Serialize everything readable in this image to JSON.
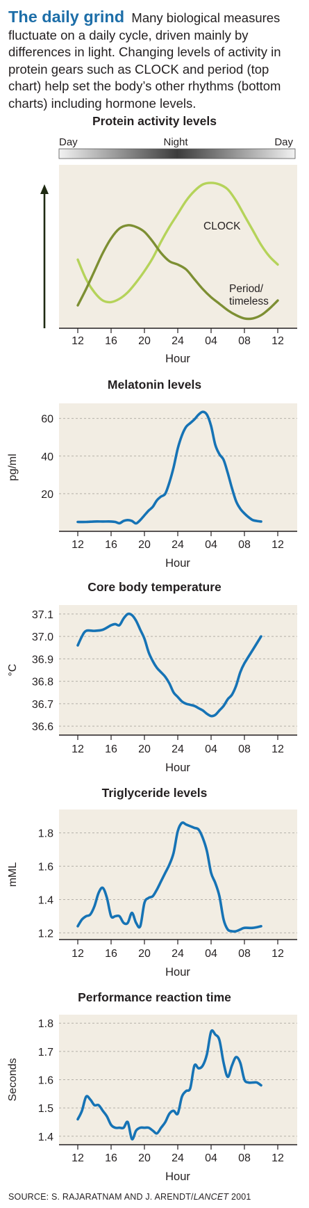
{
  "header": {
    "title": "The daily grind",
    "intro": "Many biological measures fluctuate on a daily cycle, driven mainly by differences in light. Changing levels of activity in protein gears such as CLOCK and period (top chart) help set the body’s other rhythms (bottom charts) including hormone levels."
  },
  "colors": {
    "plot_bg": "#f2ede3",
    "line": "#1673b5",
    "clock": "#b5d35a",
    "period": "#7d8f33",
    "grid": "#b4b0a8"
  },
  "chart_data": [
    {
      "type": "line",
      "title": "Protein activity levels",
      "daynight": [
        "Day",
        "Night",
        "Day"
      ],
      "xlabel": "Hour",
      "ylabel": "",
      "x_ticks": [
        "12",
        "16",
        "20",
        "24",
        "04",
        "08",
        "12"
      ],
      "x_range": [
        0,
        24
      ],
      "ylim": [
        0,
        1
      ],
      "y_axis_arrow": true,
      "grid": false,
      "series": [
        {
          "name": "CLOCK",
          "x": [
            0,
            1,
            2,
            3,
            4,
            5,
            6,
            7,
            8,
            9,
            10,
            11,
            12,
            13,
            14,
            15,
            16,
            17,
            18,
            19,
            20,
            21,
            22,
            23,
            24
          ],
          "y": [
            0.42,
            0.3,
            0.22,
            0.17,
            0.16,
            0.18,
            0.22,
            0.28,
            0.35,
            0.43,
            0.53,
            0.62,
            0.7,
            0.78,
            0.84,
            0.88,
            0.89,
            0.88,
            0.85,
            0.78,
            0.69,
            0.6,
            0.51,
            0.44,
            0.39
          ]
        },
        {
          "name": "Period/ timeless",
          "x": [
            0,
            1,
            2,
            3,
            4,
            5,
            6,
            7,
            8,
            9,
            10,
            11,
            12,
            13,
            14,
            15,
            16,
            17,
            18,
            19,
            20,
            21,
            22,
            23,
            24
          ],
          "y": [
            0.14,
            0.24,
            0.35,
            0.46,
            0.55,
            0.61,
            0.63,
            0.62,
            0.59,
            0.53,
            0.46,
            0.41,
            0.39,
            0.36,
            0.3,
            0.24,
            0.19,
            0.15,
            0.11,
            0.08,
            0.06,
            0.06,
            0.08,
            0.12,
            0.17
          ]
        }
      ]
    },
    {
      "type": "line",
      "title": "Melatonin levels",
      "xlabel": "Hour",
      "ylabel": "pg/ml",
      "x_ticks": [
        "12",
        "16",
        "20",
        "24",
        "04",
        "08",
        "12"
      ],
      "x_range": [
        0,
        24
      ],
      "ylim": [
        0,
        68
      ],
      "y_ticks": [
        20,
        40,
        60
      ],
      "grid": true,
      "series": [
        {
          "name": "",
          "x": [
            0,
            1,
            2,
            3,
            4,
            4.5,
            5,
            5.5,
            6,
            6.5,
            7,
            7.5,
            8,
            8.5,
            9,
            9.5,
            10,
            10.5,
            11,
            11.5,
            12,
            12.5,
            13,
            13.5,
            14,
            14.5,
            15,
            15.5,
            16,
            16.5,
            17,
            17.5,
            18,
            18.5,
            19,
            19.5,
            20,
            20.5,
            21,
            21.5,
            22
          ],
          "y": [
            5,
            5,
            5.2,
            5.2,
            5.2,
            5,
            4.3,
            5.5,
            6,
            5.5,
            4.2,
            6,
            8.5,
            11,
            13,
            16.5,
            18.5,
            20,
            26,
            34,
            44,
            51,
            55.5,
            57.5,
            59.5,
            62,
            63.5,
            62,
            56,
            46,
            41,
            38,
            31,
            23,
            16,
            12,
            9.5,
            7.5,
            6,
            5.5,
            5.2
          ]
        }
      ]
    },
    {
      "type": "line",
      "title": "Core body temperature",
      "xlabel": "Hour",
      "ylabel": "°C",
      "x_ticks": [
        "12",
        "16",
        "20",
        "24",
        "04",
        "08",
        "12"
      ],
      "x_range": [
        0,
        24
      ],
      "ylim": [
        36.56,
        37.14
      ],
      "y_ticks": [
        "36.6",
        "36.7",
        "36.8",
        "36.9",
        "37.0",
        "37.1"
      ],
      "grid": true,
      "series": [
        {
          "name": "",
          "x": [
            0,
            0.5,
            1,
            2,
            3,
            4,
            4.5,
            5,
            5.5,
            6,
            6.5,
            7,
            7.5,
            8,
            8.5,
            9,
            9.5,
            10,
            10.5,
            11,
            11.5,
            12,
            12.5,
            13,
            13.5,
            14,
            14.5,
            15,
            15.5,
            16,
            16.5,
            17,
            17.5,
            18,
            18.5,
            19,
            19.5,
            20,
            21,
            22
          ],
          "y": [
            36.96,
            37.0,
            37.025,
            37.025,
            37.03,
            37.05,
            37.055,
            37.05,
            37.08,
            37.1,
            37.095,
            37.07,
            37.03,
            36.99,
            36.93,
            36.89,
            36.86,
            36.84,
            36.82,
            36.79,
            36.75,
            36.73,
            36.71,
            36.7,
            36.695,
            36.69,
            36.68,
            36.67,
            36.655,
            36.645,
            36.65,
            36.67,
            36.69,
            36.72,
            36.74,
            36.78,
            36.84,
            36.88,
            36.94,
            37.0
          ]
        }
      ]
    },
    {
      "type": "line",
      "title": "Triglyceride levels",
      "xlabel": "Hour",
      "ylabel": "mML",
      "x_ticks": [
        "12",
        "16",
        "20",
        "24",
        "04",
        "08",
        "12"
      ],
      "x_range": [
        0,
        24
      ],
      "ylim": [
        1.16,
        1.94
      ],
      "y_ticks": [
        "1.2",
        "1.4",
        "1.6",
        "1.8"
      ],
      "grid": true,
      "series": [
        {
          "name": "",
          "x": [
            0,
            0.5,
            1,
            1.5,
            2,
            2.5,
            3,
            3.5,
            4,
            4.5,
            5,
            5.5,
            6,
            6.5,
            7,
            7.5,
            8,
            8.5,
            9,
            9.5,
            10,
            10.5,
            11,
            11.5,
            12,
            12.5,
            13,
            13.5,
            14,
            14.5,
            15,
            15.5,
            16,
            16.5,
            17,
            17.5,
            18,
            18.5,
            19,
            19.5,
            20,
            21,
            22
          ],
          "y": [
            1.24,
            1.28,
            1.3,
            1.31,
            1.36,
            1.44,
            1.47,
            1.41,
            1.3,
            1.3,
            1.3,
            1.26,
            1.26,
            1.32,
            1.26,
            1.24,
            1.38,
            1.41,
            1.42,
            1.46,
            1.51,
            1.56,
            1.61,
            1.68,
            1.81,
            1.86,
            1.85,
            1.84,
            1.83,
            1.82,
            1.77,
            1.69,
            1.56,
            1.5,
            1.42,
            1.28,
            1.22,
            1.21,
            1.21,
            1.22,
            1.23,
            1.23,
            1.24
          ]
        }
      ]
    },
    {
      "type": "line",
      "title": "Performance reaction time",
      "xlabel": "Hour",
      "ylabel": "Seconds",
      "x_ticks": [
        "12",
        "16",
        "20",
        "24",
        "04",
        "08",
        "12"
      ],
      "x_range": [
        0,
        24
      ],
      "ylim": [
        1.37,
        1.83
      ],
      "y_ticks": [
        "1.4",
        "1.5",
        "1.6",
        "1.7",
        "1.8"
      ],
      "grid": true,
      "series": [
        {
          "name": "",
          "x": [
            0,
            0.5,
            1,
            1.5,
            2,
            2.5,
            3,
            3.5,
            4,
            4.5,
            5,
            5.5,
            6,
            6.5,
            7,
            7.5,
            8,
            8.5,
            9,
            9.5,
            10,
            10.5,
            11,
            11.5,
            12,
            12.5,
            13,
            13.5,
            14,
            14.5,
            15,
            15.5,
            16,
            16.5,
            17,
            17.5,
            18,
            18.5,
            19,
            19.5,
            20,
            20.5,
            21,
            21.5,
            22
          ],
          "y": [
            1.46,
            1.49,
            1.54,
            1.53,
            1.51,
            1.51,
            1.49,
            1.47,
            1.44,
            1.43,
            1.43,
            1.43,
            1.45,
            1.39,
            1.42,
            1.43,
            1.43,
            1.43,
            1.42,
            1.41,
            1.43,
            1.45,
            1.48,
            1.49,
            1.48,
            1.54,
            1.56,
            1.57,
            1.65,
            1.64,
            1.65,
            1.69,
            1.77,
            1.76,
            1.74,
            1.66,
            1.61,
            1.65,
            1.68,
            1.66,
            1.6,
            1.59,
            1.59,
            1.59,
            1.58
          ]
        }
      ]
    }
  ],
  "source": {
    "text": "SOURCE: S. RAJARATNAM AND J. ARENDT/",
    "journal": "LANCET",
    "year": " 2001"
  }
}
